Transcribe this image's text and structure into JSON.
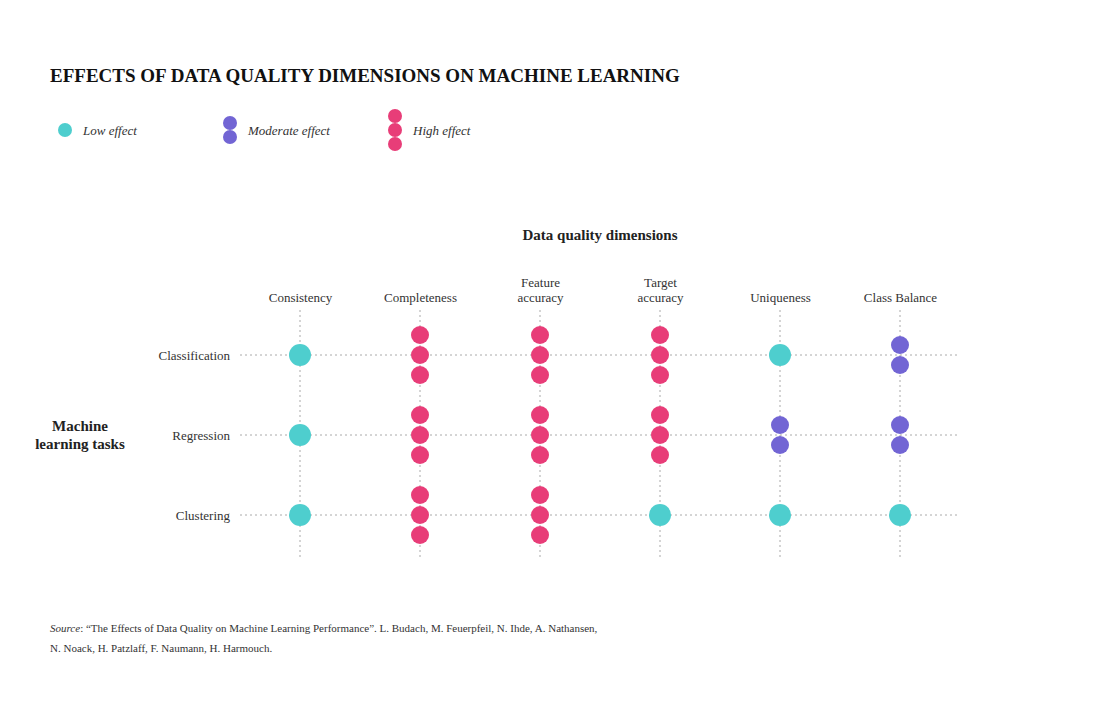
{
  "chart_data": {
    "type": "dot_matrix",
    "title": "EFFECTS OF DATA QUALITY DIMENSIONS ON MACHINE LEARNING",
    "x_label": "Data quality dimensions",
    "y_label": "Machine\nlearning tasks",
    "categories": [
      "Consistency",
      "Completeness",
      "Feature\naccuracy",
      "Target\naccuracy",
      "Uniqueness",
      "Class Balance"
    ],
    "rows": [
      "Classification",
      "Regression",
      "Clustering"
    ],
    "values": [
      [
        1,
        3,
        3,
        3,
        1,
        2
      ],
      [
        1,
        3,
        3,
        3,
        2,
        2
      ],
      [
        1,
        3,
        3,
        1,
        1,
        1
      ]
    ],
    "levels": [
      {
        "name": "Low effect",
        "color": "#4ecece",
        "value": 1
      },
      {
        "name": "Moderate effect",
        "color": "#7265d4",
        "value": 2
      },
      {
        "name": "High effect",
        "color": "#e83d78",
        "value": 3
      }
    ],
    "grid": true,
    "source_italic": "Source",
    "source": [
      ": “The Effects of Data Quality on Machine Learning Performance”. L. Budach, M. Feuerpfeil, N. Ihde, A. Nathansen,",
      "N. Noack, H. Patzlaff, F. Naumann, H. Harmouch."
    ]
  }
}
